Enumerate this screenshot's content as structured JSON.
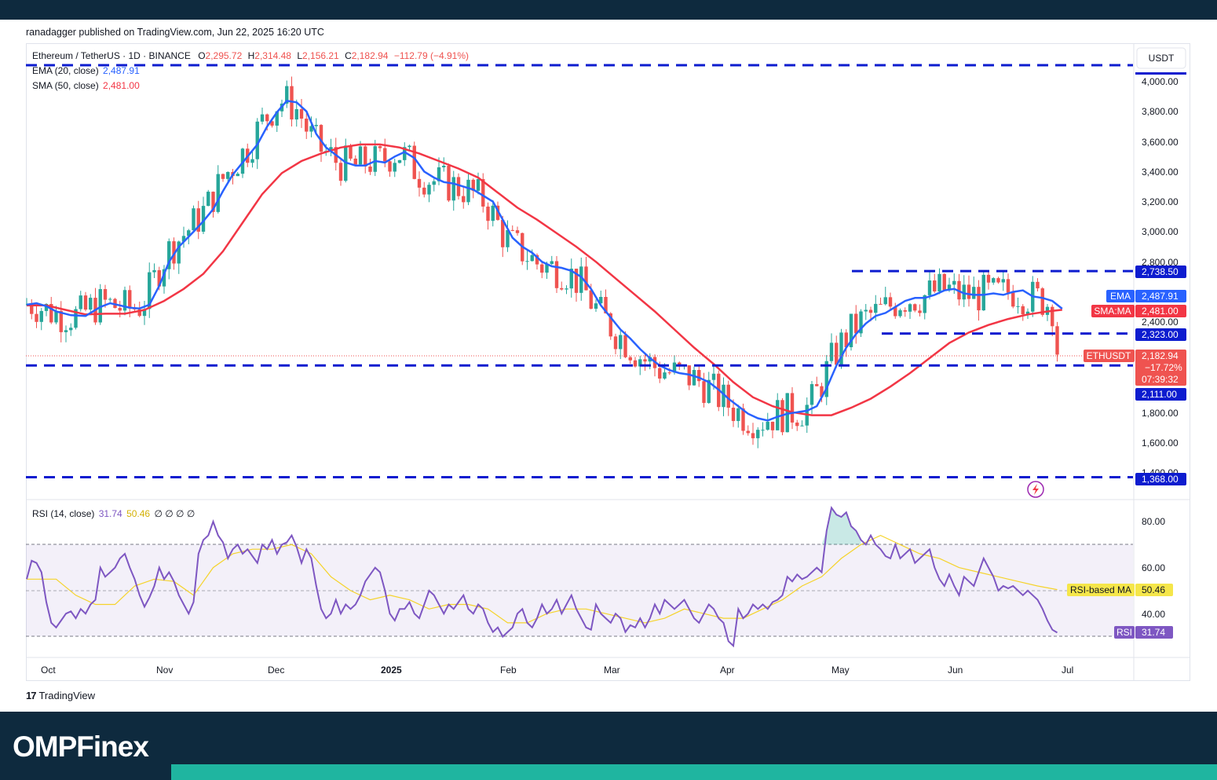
{
  "header": {
    "published": "ranadagger published on TradingView.com, Jun 22, 2025 16:20 UTC"
  },
  "ohlc": {
    "symbol": "Ethereum / TetherUS · 1D · BINANCE",
    "o_label": "O",
    "o": "2,295.72",
    "h_label": "H",
    "h": "2,314.48",
    "l_label": "L",
    "l": "2,156.21",
    "c_label": "C",
    "c": "2,182.94",
    "change": "−112.79 (−4.91%)"
  },
  "indicators": {
    "ema_label": "EMA (20, close)",
    "ema_value": "2,487.91",
    "sma_label": "SMA (50, close)",
    "sma_value": "2,481.00",
    "rsi_label": "RSI (14, close)",
    "rsi_value": "31.74",
    "rsi_ma_value": "50.46",
    "rsi_extra": "∅ ∅ ∅ ∅"
  },
  "axis": {
    "currency": "USDT",
    "price_ticks": [
      "4,000.00",
      "3,800.00",
      "3,600.00",
      "3,400.00",
      "3,200.00",
      "3,000.00",
      "2,800.00",
      "2,400.00",
      "1,800.00",
      "1,600.00",
      "1,400.00"
    ],
    "rsi_ticks": [
      "80.00",
      "60.00",
      "40.00"
    ],
    "x_ticks": [
      "Oct",
      "Nov",
      "Dec",
      "2025",
      "Feb",
      "Mar",
      "Apr",
      "May",
      "Jun",
      "Jul"
    ]
  },
  "price_tags": {
    "level_2738": "2,738.50",
    "ema_name": "EMA",
    "ema": "2,487.91",
    "sma_name": "SMA:MA",
    "sma": "2,481.00",
    "level_2323": "2,323.00",
    "last_name": "ETHUSDT",
    "last": "2,182.94",
    "last_change": "−17.72%",
    "countdown": "07:39:32",
    "level_2111": "2,111.00",
    "level_1368": "1,368.00",
    "rsi_ma_name": "RSI-based MA",
    "rsi_ma": "50.46",
    "rsi_name": "RSI",
    "rsi": "31.74"
  },
  "brand": {
    "tradingview": "TradingView",
    "footer": "OMPFinex"
  },
  "colors": {
    "candle_up": "#26a69a",
    "candle_down": "#ef5350",
    "ema": "#2962ff",
    "sma": "#f23645",
    "level_line": "#0d1ccf",
    "rsi": "#7e57c2",
    "rsi_ma": "#f5d32a",
    "footer_bg": "#0e2a3e",
    "footer_stripe": "#1fb5a0"
  },
  "chart_data": {
    "type": "candlestick",
    "price_range": [
      1368,
      4100
    ],
    "horizontal_levels": [
      4107,
      2738.5,
      2323,
      2111,
      1368
    ],
    "ema_points": [
      [
        0,
        2515
      ],
      [
        2,
        2525
      ],
      [
        4,
        2505
      ],
      [
        6,
        2470
      ],
      [
        9,
        2445
      ],
      [
        12,
        2440
      ],
      [
        15,
        2500
      ],
      [
        17,
        2525
      ],
      [
        19,
        2510
      ],
      [
        21,
        2495
      ],
      [
        23,
        2490
      ],
      [
        25,
        2515
      ],
      [
        27,
        2640
      ],
      [
        29,
        2800
      ],
      [
        31,
        2900
      ],
      [
        34,
        3000
      ],
      [
        36,
        3070
      ],
      [
        38,
        3150
      ],
      [
        40,
        3270
      ],
      [
        42,
        3380
      ],
      [
        44,
        3460
      ],
      [
        47,
        3580
      ],
      [
        49,
        3700
      ],
      [
        51,
        3795
      ],
      [
        53,
        3870
      ],
      [
        55,
        3860
      ],
      [
        57,
        3800
      ],
      [
        59,
        3650
      ],
      [
        61,
        3560
      ],
      [
        63,
        3510
      ],
      [
        65,
        3460
      ],
      [
        67,
        3440
      ],
      [
        69,
        3440
      ],
      [
        71,
        3470
      ],
      [
        73,
        3460
      ],
      [
        75,
        3500
      ],
      [
        77,
        3530
      ],
      [
        79,
        3490
      ],
      [
        81,
        3400
      ],
      [
        83,
        3360
      ],
      [
        85,
        3330
      ],
      [
        87,
        3320
      ],
      [
        89,
        3300
      ],
      [
        91,
        3280
      ],
      [
        93,
        3240
      ],
      [
        95,
        3200
      ],
      [
        97,
        3080
      ],
      [
        99,
        2960
      ],
      [
        101,
        2900
      ],
      [
        103,
        2860
      ],
      [
        105,
        2800
      ],
      [
        107,
        2770
      ],
      [
        109,
        2760
      ],
      [
        111,
        2740
      ],
      [
        113,
        2700
      ],
      [
        115,
        2620
      ],
      [
        117,
        2510
      ],
      [
        119,
        2430
      ],
      [
        121,
        2350
      ],
      [
        123,
        2290
      ],
      [
        125,
        2220
      ],
      [
        127,
        2160
      ],
      [
        129,
        2110
      ],
      [
        131,
        2080
      ],
      [
        133,
        2060
      ],
      [
        135,
        2050
      ],
      [
        137,
        2030
      ],
      [
        139,
        2000
      ],
      [
        141,
        1950
      ],
      [
        143,
        1890
      ],
      [
        145,
        1840
      ],
      [
        147,
        1790
      ],
      [
        149,
        1760
      ],
      [
        151,
        1745
      ],
      [
        153,
        1770
      ],
      [
        155,
        1790
      ],
      [
        157,
        1800
      ],
      [
        159,
        1810
      ],
      [
        161,
        1840
      ],
      [
        163,
        1960
      ],
      [
        165,
        2110
      ],
      [
        167,
        2230
      ],
      [
        169,
        2320
      ],
      [
        171,
        2390
      ],
      [
        173,
        2440
      ],
      [
        175,
        2460
      ],
      [
        177,
        2500
      ],
      [
        179,
        2540
      ],
      [
        181,
        2560
      ],
      [
        183,
        2560
      ],
      [
        185,
        2580
      ],
      [
        187,
        2610
      ],
      [
        189,
        2620
      ],
      [
        191,
        2590
      ],
      [
        193,
        2580
      ],
      [
        195,
        2580
      ],
      [
        197,
        2590
      ],
      [
        199,
        2580
      ],
      [
        201,
        2600
      ],
      [
        203,
        2610
      ],
      [
        205,
        2570
      ],
      [
        207,
        2560
      ],
      [
        209,
        2540
      ],
      [
        211,
        2488
      ]
    ],
    "sma_points": [
      [
        0,
        2510
      ],
      [
        4,
        2510
      ],
      [
        8,
        2480
      ],
      [
        12,
        2450
      ],
      [
        16,
        2455
      ],
      [
        20,
        2455
      ],
      [
        24,
        2480
      ],
      [
        28,
        2540
      ],
      [
        32,
        2620
      ],
      [
        36,
        2720
      ],
      [
        40,
        2870
      ],
      [
        44,
        3060
      ],
      [
        48,
        3250
      ],
      [
        52,
        3390
      ],
      [
        56,
        3470
      ],
      [
        60,
        3520
      ],
      [
        64,
        3560
      ],
      [
        68,
        3580
      ],
      [
        72,
        3580
      ],
      [
        76,
        3560
      ],
      [
        80,
        3520
      ],
      [
        84,
        3470
      ],
      [
        88,
        3420
      ],
      [
        92,
        3360
      ],
      [
        96,
        3260
      ],
      [
        100,
        3160
      ],
      [
        104,
        3080
      ],
      [
        108,
        2990
      ],
      [
        112,
        2900
      ],
      [
        116,
        2800
      ],
      [
        120,
        2690
      ],
      [
        124,
        2580
      ],
      [
        128,
        2470
      ],
      [
        132,
        2350
      ],
      [
        136,
        2230
      ],
      [
        140,
        2120
      ],
      [
        144,
        2000
      ],
      [
        148,
        1900
      ],
      [
        152,
        1840
      ],
      [
        156,
        1800
      ],
      [
        160,
        1780
      ],
      [
        164,
        1780
      ],
      [
        168,
        1830
      ],
      [
        172,
        1890
      ],
      [
        176,
        1970
      ],
      [
        180,
        2060
      ],
      [
        184,
        2160
      ],
      [
        188,
        2260
      ],
      [
        192,
        2330
      ],
      [
        196,
        2380
      ],
      [
        200,
        2420
      ],
      [
        204,
        2450
      ],
      [
        208,
        2470
      ],
      [
        211,
        2481
      ]
    ],
    "rsi_range": [
      20,
      90
    ],
    "rsi_overbought": 70,
    "rsi_oversold": 30,
    "rsi_points": [
      [
        0,
        55
      ],
      [
        1,
        63
      ],
      [
        2,
        62
      ],
      [
        3,
        58
      ],
      [
        4,
        45
      ],
      [
        5,
        36
      ],
      [
        6,
        34
      ],
      [
        7,
        37
      ],
      [
        8,
        40
      ],
      [
        9,
        41
      ],
      [
        10,
        38
      ],
      [
        11,
        42
      ],
      [
        12,
        40
      ],
      [
        13,
        44
      ],
      [
        14,
        46
      ],
      [
        15,
        60
      ],
      [
        16,
        56
      ],
      [
        17,
        58
      ],
      [
        18,
        60
      ],
      [
        19,
        64
      ],
      [
        20,
        66
      ],
      [
        21,
        60
      ],
      [
        22,
        55
      ],
      [
        23,
        48
      ],
      [
        24,
        43
      ],
      [
        25,
        47
      ],
      [
        26,
        52
      ],
      [
        27,
        60
      ],
      [
        28,
        55
      ],
      [
        29,
        58
      ],
      [
        30,
        54
      ],
      [
        31,
        48
      ],
      [
        32,
        44
      ],
      [
        33,
        40
      ],
      [
        34,
        45
      ],
      [
        35,
        66
      ],
      [
        36,
        72
      ],
      [
        37,
        74
      ],
      [
        38,
        80
      ],
      [
        39,
        74
      ],
      [
        40,
        71
      ],
      [
        41,
        64
      ],
      [
        42,
        68
      ],
      [
        43,
        70
      ],
      [
        44,
        66
      ],
      [
        45,
        68
      ],
      [
        46,
        65
      ],
      [
        47,
        62
      ],
      [
        48,
        70
      ],
      [
        49,
        68
      ],
      [
        50,
        72
      ],
      [
        51,
        66
      ],
      [
        52,
        70
      ],
      [
        53,
        71
      ],
      [
        54,
        74
      ],
      [
        55,
        69
      ],
      [
        56,
        62
      ],
      [
        57,
        68
      ],
      [
        58,
        64
      ],
      [
        59,
        52
      ],
      [
        60,
        42
      ],
      [
        61,
        38
      ],
      [
        62,
        40
      ],
      [
        63,
        46
      ],
      [
        64,
        40
      ],
      [
        65,
        44
      ],
      [
        66,
        42
      ],
      [
        67,
        44
      ],
      [
        68,
        48
      ],
      [
        69,
        54
      ],
      [
        70,
        57
      ],
      [
        71,
        60
      ],
      [
        72,
        58
      ],
      [
        73,
        50
      ],
      [
        74,
        40
      ],
      [
        75,
        37
      ],
      [
        76,
        42
      ],
      [
        77,
        42
      ],
      [
        78,
        45
      ],
      [
        79,
        40
      ],
      [
        80,
        38
      ],
      [
        81,
        44
      ],
      [
        82,
        50
      ],
      [
        83,
        48
      ],
      [
        84,
        44
      ],
      [
        85,
        40
      ],
      [
        86,
        44
      ],
      [
        87,
        42
      ],
      [
        88,
        45
      ],
      [
        89,
        48
      ],
      [
        90,
        42
      ],
      [
        91,
        40
      ],
      [
        92,
        44
      ],
      [
        93,
        42
      ],
      [
        94,
        36
      ],
      [
        95,
        32
      ],
      [
        96,
        34
      ],
      [
        97,
        30
      ],
      [
        98,
        32
      ],
      [
        99,
        34
      ],
      [
        100,
        40
      ],
      [
        101,
        42
      ],
      [
        102,
        36
      ],
      [
        103,
        34
      ],
      [
        104,
        38
      ],
      [
        105,
        44
      ],
      [
        106,
        40
      ],
      [
        107,
        42
      ],
      [
        108,
        46
      ],
      [
        109,
        40
      ],
      [
        110,
        44
      ],
      [
        111,
        48
      ],
      [
        112,
        42
      ],
      [
        113,
        38
      ],
      [
        114,
        34
      ],
      [
        115,
        33
      ],
      [
        116,
        44
      ],
      [
        117,
        40
      ],
      [
        118,
        38
      ],
      [
        119,
        36
      ],
      [
        120,
        40
      ],
      [
        121,
        38
      ],
      [
        122,
        32
      ],
      [
        123,
        35
      ],
      [
        124,
        34
      ],
      [
        125,
        38
      ],
      [
        126,
        34
      ],
      [
        127,
        38
      ],
      [
        128,
        44
      ],
      [
        129,
        40
      ],
      [
        130,
        46
      ],
      [
        131,
        44
      ],
      [
        132,
        42
      ],
      [
        133,
        44
      ],
      [
        134,
        46
      ],
      [
        135,
        42
      ],
      [
        136,
        38
      ],
      [
        137,
        36
      ],
      [
        138,
        40
      ],
      [
        139,
        44
      ],
      [
        140,
        42
      ],
      [
        141,
        38
      ],
      [
        142,
        36
      ],
      [
        143,
        28
      ],
      [
        144,
        26
      ],
      [
        145,
        42
      ],
      [
        146,
        38
      ],
      [
        147,
        40
      ],
      [
        148,
        44
      ],
      [
        149,
        42
      ],
      [
        150,
        44
      ],
      [
        151,
        42
      ],
      [
        152,
        45
      ],
      [
        153,
        46
      ],
      [
        154,
        48
      ],
      [
        155,
        56
      ],
      [
        156,
        54
      ],
      [
        157,
        57
      ],
      [
        158,
        55
      ],
      [
        159,
        56
      ],
      [
        160,
        58
      ],
      [
        161,
        60
      ],
      [
        162,
        58
      ],
      [
        163,
        76
      ],
      [
        164,
        86
      ],
      [
        165,
        83
      ],
      [
        166,
        82
      ],
      [
        167,
        84
      ],
      [
        168,
        78
      ],
      [
        169,
        76
      ],
      [
        170,
        72
      ],
      [
        171,
        70
      ],
      [
        172,
        74
      ],
      [
        173,
        70
      ],
      [
        174,
        68
      ],
      [
        175,
        65
      ],
      [
        176,
        64
      ],
      [
        177,
        70
      ],
      [
        178,
        64
      ],
      [
        179,
        66
      ],
      [
        180,
        68
      ],
      [
        181,
        62
      ],
      [
        182,
        64
      ],
      [
        183,
        66
      ],
      [
        184,
        68
      ],
      [
        185,
        60
      ],
      [
        186,
        55
      ],
      [
        187,
        52
      ],
      [
        188,
        57
      ],
      [
        189,
        52
      ],
      [
        190,
        48
      ],
      [
        191,
        56
      ],
      [
        192,
        54
      ],
      [
        193,
        52
      ],
      [
        194,
        58
      ],
      [
        195,
        64
      ],
      [
        196,
        60
      ],
      [
        197,
        56
      ],
      [
        198,
        50
      ],
      [
        199,
        52
      ],
      [
        200,
        51
      ],
      [
        201,
        52
      ],
      [
        202,
        50
      ],
      [
        203,
        48
      ],
      [
        204,
        50
      ],
      [
        205,
        48
      ],
      [
        206,
        46
      ],
      [
        207,
        42
      ],
      [
        208,
        37
      ],
      [
        209,
        33
      ],
      [
        210,
        31.74
      ]
    ],
    "rsi_ma_points": [
      [
        0,
        55
      ],
      [
        6,
        55
      ],
      [
        10,
        48
      ],
      [
        14,
        44
      ],
      [
        18,
        44
      ],
      [
        22,
        52
      ],
      [
        26,
        55
      ],
      [
        30,
        54
      ],
      [
        34,
        48
      ],
      [
        38,
        60
      ],
      [
        42,
        66
      ],
      [
        46,
        68
      ],
      [
        50,
        68
      ],
      [
        54,
        70
      ],
      [
        58,
        66
      ],
      [
        62,
        56
      ],
      [
        66,
        50
      ],
      [
        70,
        46
      ],
      [
        74,
        48
      ],
      [
        78,
        46
      ],
      [
        82,
        42
      ],
      [
        86,
        44
      ],
      [
        90,
        44
      ],
      [
        94,
        42
      ],
      [
        98,
        36
      ],
      [
        102,
        36
      ],
      [
        106,
        40
      ],
      [
        110,
        42
      ],
      [
        114,
        42
      ],
      [
        118,
        40
      ],
      [
        122,
        38
      ],
      [
        126,
        36
      ],
      [
        130,
        38
      ],
      [
        134,
        42
      ],
      [
        138,
        40
      ],
      [
        142,
        38
      ],
      [
        146,
        38
      ],
      [
        150,
        42
      ],
      [
        154,
        46
      ],
      [
        158,
        52
      ],
      [
        162,
        56
      ],
      [
        166,
        64
      ],
      [
        170,
        70
      ],
      [
        174,
        74
      ],
      [
        178,
        70
      ],
      [
        182,
        66
      ],
      [
        186,
        64
      ],
      [
        190,
        60
      ],
      [
        194,
        58
      ],
      [
        198,
        56
      ],
      [
        202,
        54
      ],
      [
        206,
        52
      ],
      [
        210,
        50.46
      ]
    ]
  }
}
